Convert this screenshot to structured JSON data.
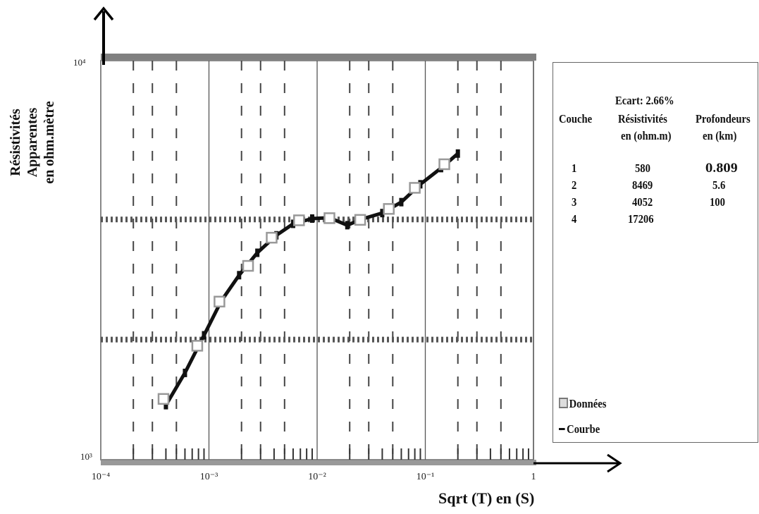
{
  "chart_data": {
    "type": "scatter",
    "xscale": "log",
    "yscale": "log",
    "xlim": [
      0.0001,
      1
    ],
    "ylim": [
      1000,
      10000
    ],
    "xticks": [
      "10⁻⁴",
      "10⁻³",
      "10⁻²",
      "10⁻¹",
      "1"
    ],
    "yticks": [
      "10³",
      "10⁴"
    ],
    "xlabel": "Sqrt (T) en (S)",
    "ylabel": [
      "Résistivités",
      "Apparentes",
      "en ohm.mètre"
    ],
    "series": [
      {
        "name": "Données",
        "marker": "square",
        "color": "#999999",
        "points": [
          [
            0.00038,
            1420
          ],
          [
            0.00078,
            1930
          ],
          [
            0.00125,
            2490
          ],
          [
            0.0023,
            3060
          ],
          [
            0.0038,
            3600
          ],
          [
            0.0068,
            3980
          ],
          [
            0.013,
            4030
          ],
          [
            0.025,
            3990
          ],
          [
            0.046,
            4250
          ],
          [
            0.08,
            4800
          ],
          [
            0.15,
            5500
          ]
        ]
      },
      {
        "name": "Courbe",
        "color": "#111111",
        "points": [
          [
            0.0004,
            1370
          ],
          [
            0.0006,
            1650
          ],
          [
            0.0009,
            2050
          ],
          [
            0.0013,
            2500
          ],
          [
            0.0019,
            2900
          ],
          [
            0.0028,
            3300
          ],
          [
            0.0042,
            3650
          ],
          [
            0.006,
            3900
          ],
          [
            0.009,
            4020
          ],
          [
            0.013,
            4040
          ],
          [
            0.019,
            3870
          ],
          [
            0.026,
            4010
          ],
          [
            0.04,
            4150
          ],
          [
            0.06,
            4420
          ],
          [
            0.09,
            4900
          ],
          [
            0.14,
            5380
          ],
          [
            0.2,
            5850
          ]
        ]
      }
    ],
    "ref_lines": [
      4000,
      2000
    ],
    "legend": {
      "ecart": "Ecart: 2.66%",
      "headers": [
        [
          "Couche",
          ""
        ],
        [
          "Résistivités",
          "en (ohm.m)"
        ],
        [
          "Profondeurs",
          "en (km)"
        ]
      ],
      "rows": [
        [
          "1",
          "580",
          "0.809"
        ],
        [
          "2",
          "8469",
          "5.6"
        ],
        [
          "3",
          "4052",
          "100"
        ],
        [
          "4",
          "17206",
          ""
        ]
      ],
      "items": [
        "Données",
        "Courbe"
      ]
    }
  }
}
